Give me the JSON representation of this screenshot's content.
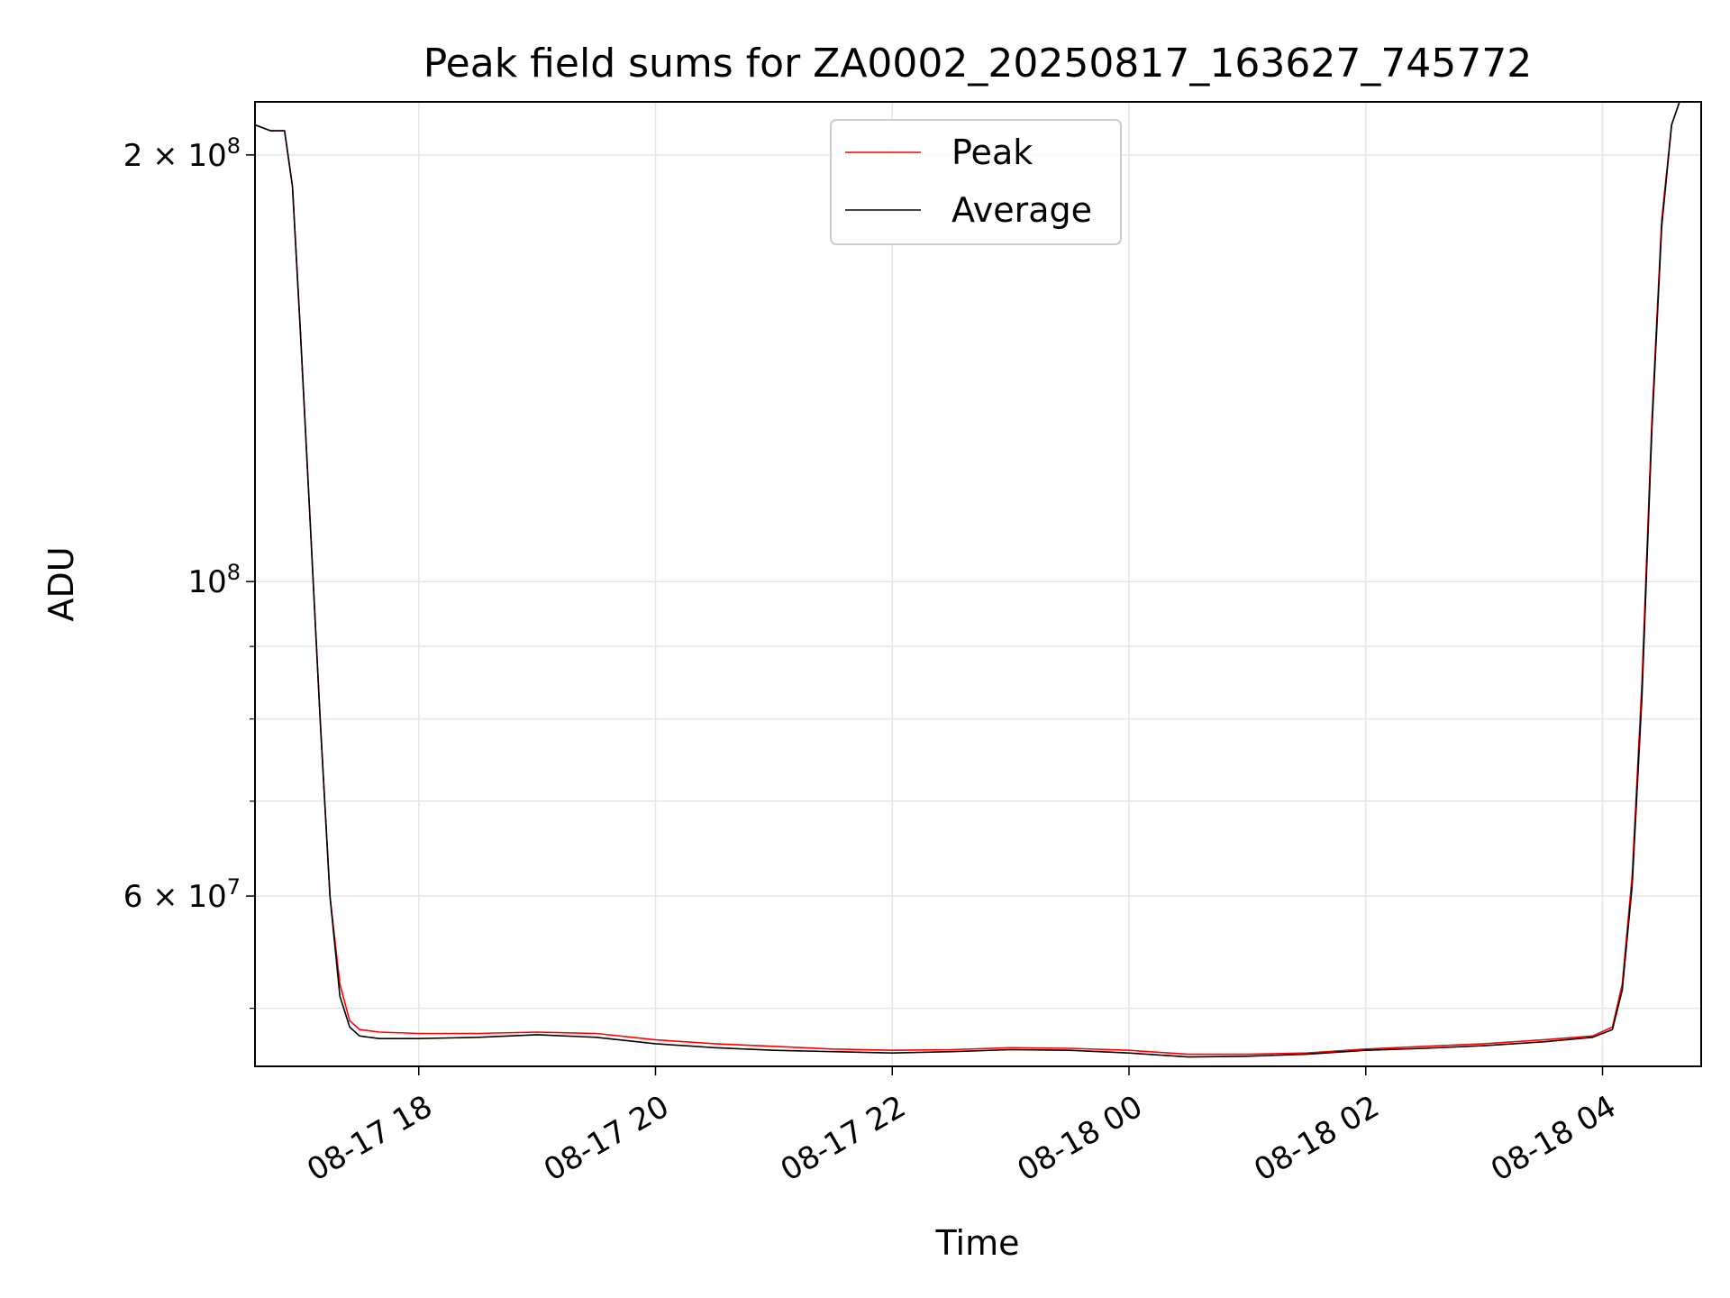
{
  "chart_data": {
    "type": "line",
    "title": "Peak field sums for ZA0002_20250817_163627_745772",
    "xlabel": "Time",
    "ylabel": "ADU",
    "y_scale": "log",
    "xlim": [
      "2025-08-17 16:37",
      "2025-08-18 04:50"
    ],
    "ylim": [
      45500000,
      218000000
    ],
    "x_ticks": [
      "08-17 18",
      "08-17 20",
      "08-17 22",
      "08-18 00",
      "08-18 02",
      "08-18 04"
    ],
    "x_tick_times": [
      "2025-08-17 18:00",
      "2025-08-17 20:00",
      "2025-08-17 22:00",
      "2025-08-18 00:00",
      "2025-08-18 02:00",
      "2025-08-18 04:00"
    ],
    "y_major_ticks": [
      {
        "value": 60000000,
        "mantissa": "6",
        "exponent": "7"
      },
      {
        "value": 100000000,
        "mantissa": "",
        "exponent": "8"
      },
      {
        "value": 200000000,
        "mantissa": "2",
        "exponent": "8"
      }
    ],
    "y_minor_ticks": [
      50000000,
      70000000,
      80000000,
      90000000
    ],
    "grid": true,
    "legend_position": "top-center",
    "series": [
      {
        "name": "Peak",
        "color": "#ff0000",
        "points": [
          [
            "2025-08-17 16:37",
            210000000
          ],
          [
            "2025-08-17 16:45",
            208000000
          ],
          [
            "2025-08-17 16:52",
            208000000
          ],
          [
            "2025-08-17 16:56",
            190000000
          ],
          [
            "2025-08-17 17:00",
            150000000
          ],
          [
            "2025-08-17 17:05",
            110000000
          ],
          [
            "2025-08-17 17:10",
            80000000
          ],
          [
            "2025-08-17 17:15",
            60000000
          ],
          [
            "2025-08-17 17:20",
            52000000
          ],
          [
            "2025-08-17 17:25",
            49000000
          ],
          [
            "2025-08-17 17:30",
            48300000
          ],
          [
            "2025-08-17 17:40",
            48100000
          ],
          [
            "2025-08-17 18:00",
            48000000
          ],
          [
            "2025-08-17 18:30",
            48000000
          ],
          [
            "2025-08-17 19:00",
            48100000
          ],
          [
            "2025-08-17 19:30",
            48000000
          ],
          [
            "2025-08-17 20:00",
            47500000
          ],
          [
            "2025-08-17 20:30",
            47200000
          ],
          [
            "2025-08-17 21:00",
            47000000
          ],
          [
            "2025-08-17 21:30",
            46800000
          ],
          [
            "2025-08-17 22:00",
            46700000
          ],
          [
            "2025-08-17 22:30",
            46750000
          ],
          [
            "2025-08-17 23:00",
            46900000
          ],
          [
            "2025-08-17 23:30",
            46850000
          ],
          [
            "2025-08-18 00:00",
            46700000
          ],
          [
            "2025-08-18 00:30",
            46400000
          ],
          [
            "2025-08-18 01:00",
            46400000
          ],
          [
            "2025-08-18 01:30",
            46500000
          ],
          [
            "2025-08-18 02:00",
            46800000
          ],
          [
            "2025-08-18 02:30",
            47000000
          ],
          [
            "2025-08-18 03:00",
            47200000
          ],
          [
            "2025-08-18 03:30",
            47500000
          ],
          [
            "2025-08-18 03:55",
            47800000
          ],
          [
            "2025-08-18 04:05",
            48500000
          ],
          [
            "2025-08-18 04:10",
            52000000
          ],
          [
            "2025-08-18 04:15",
            62000000
          ],
          [
            "2025-08-18 04:20",
            85000000
          ],
          [
            "2025-08-18 04:25",
            130000000
          ],
          [
            "2025-08-18 04:30",
            180000000
          ],
          [
            "2025-08-18 04:35",
            210000000
          ],
          [
            "2025-08-18 04:40",
            220000000
          ]
        ]
      },
      {
        "name": "Average",
        "color": "#000000",
        "points": [
          [
            "2025-08-17 16:37",
            210000000
          ],
          [
            "2025-08-17 16:45",
            208000000
          ],
          [
            "2025-08-17 16:52",
            208000000
          ],
          [
            "2025-08-17 16:56",
            190000000
          ],
          [
            "2025-08-17 17:00",
            150000000
          ],
          [
            "2025-08-17 17:05",
            110000000
          ],
          [
            "2025-08-17 17:10",
            80000000
          ],
          [
            "2025-08-17 17:15",
            60000000
          ],
          [
            "2025-08-17 17:20",
            51000000
          ],
          [
            "2025-08-17 17:25",
            48500000
          ],
          [
            "2025-08-17 17:30",
            47800000
          ],
          [
            "2025-08-17 17:40",
            47600000
          ],
          [
            "2025-08-17 18:00",
            47600000
          ],
          [
            "2025-08-17 18:30",
            47700000
          ],
          [
            "2025-08-17 19:00",
            47900000
          ],
          [
            "2025-08-17 19:30",
            47700000
          ],
          [
            "2025-08-17 20:00",
            47200000
          ],
          [
            "2025-08-17 20:30",
            46900000
          ],
          [
            "2025-08-17 21:00",
            46700000
          ],
          [
            "2025-08-17 21:30",
            46600000
          ],
          [
            "2025-08-17 22:00",
            46500000
          ],
          [
            "2025-08-17 22:30",
            46600000
          ],
          [
            "2025-08-17 23:00",
            46750000
          ],
          [
            "2025-08-17 23:30",
            46700000
          ],
          [
            "2025-08-18 00:00",
            46500000
          ],
          [
            "2025-08-18 00:30",
            46200000
          ],
          [
            "2025-08-18 01:00",
            46250000
          ],
          [
            "2025-08-18 01:30",
            46400000
          ],
          [
            "2025-08-18 02:00",
            46700000
          ],
          [
            "2025-08-18 02:30",
            46850000
          ],
          [
            "2025-08-18 03:00",
            47050000
          ],
          [
            "2025-08-18 03:30",
            47350000
          ],
          [
            "2025-08-18 03:55",
            47700000
          ],
          [
            "2025-08-18 04:05",
            48300000
          ],
          [
            "2025-08-18 04:10",
            51500000
          ],
          [
            "2025-08-18 04:15",
            61000000
          ],
          [
            "2025-08-18 04:20",
            83000000
          ],
          [
            "2025-08-18 04:25",
            128000000
          ],
          [
            "2025-08-18 04:30",
            178000000
          ],
          [
            "2025-08-18 04:35",
            210000000
          ],
          [
            "2025-08-18 04:40",
            220000000
          ]
        ]
      }
    ]
  }
}
